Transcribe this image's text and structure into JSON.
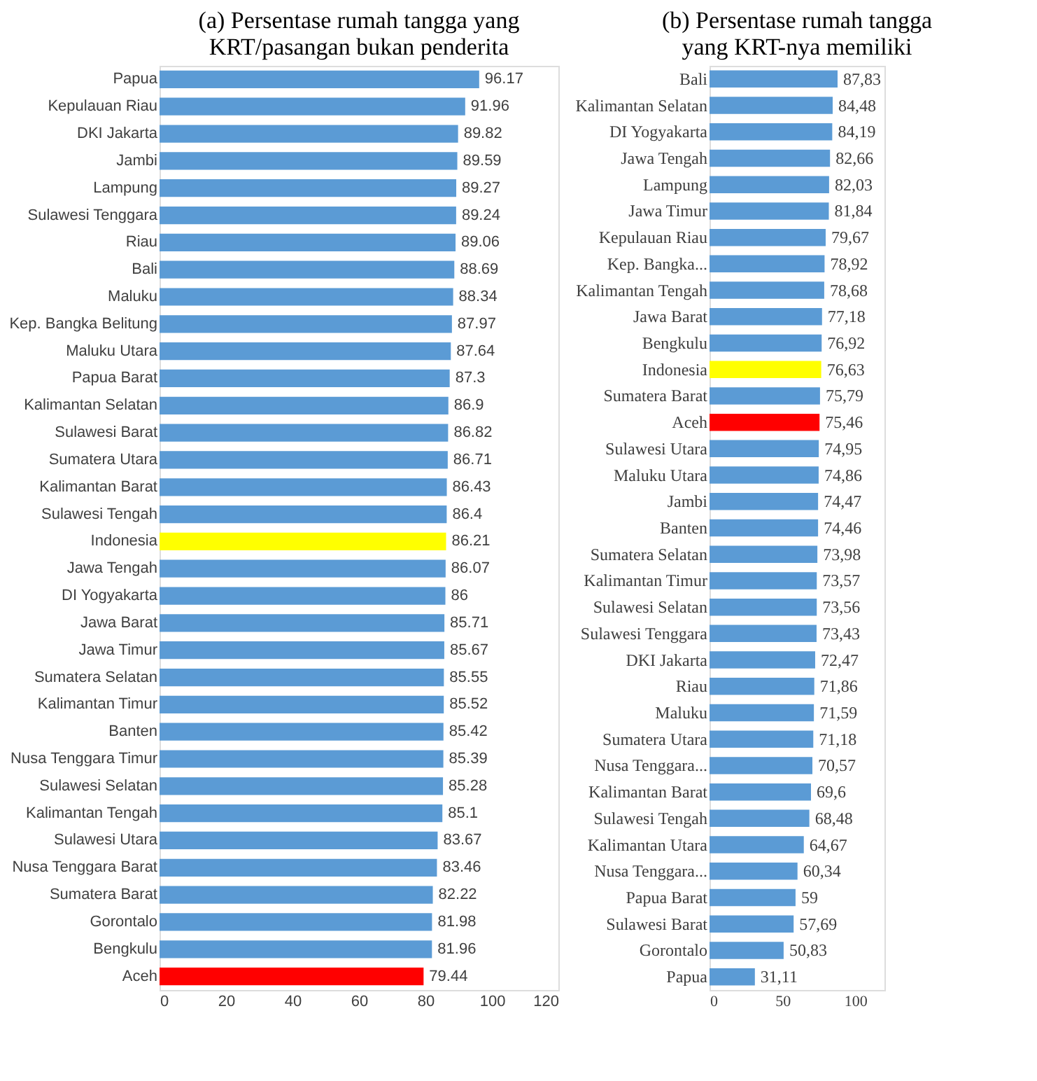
{
  "chart_data": [
    {
      "type": "bar",
      "orientation": "horizontal",
      "title": "(a) Persentase rumah tangga yang\nKRT/pasangan bukan penderita",
      "categories": [
        "Papua",
        "Kepulauan Riau",
        "DKI Jakarta",
        "Jambi",
        "Lampung",
        "Sulawesi Tenggara",
        "Riau",
        "Bali",
        "Maluku",
        "Kep. Bangka Belitung",
        "Maluku Utara",
        "Papua Barat",
        "Kalimantan Selatan",
        "Sulawesi Barat",
        "Sumatera Utara",
        "Kalimantan Barat",
        "Sulawesi Tengah",
        "Indonesia",
        "Jawa Tengah",
        "DI Yogyakarta",
        "Jawa Barat",
        "Jawa Timur",
        "Sumatera Selatan",
        "Kalimantan Timur",
        "Banten",
        "Nusa Tenggara Timur",
        "Sulawesi Selatan",
        "Kalimantan Tengah",
        "Sulawesi Utara",
        "Nusa Tenggara Barat",
        "Sumatera Barat",
        "Gorontalo",
        "Bengkulu",
        "Aceh"
      ],
      "values": [
        96.17,
        91.96,
        89.82,
        89.59,
        89.27,
        89.24,
        89.06,
        88.69,
        88.34,
        87.97,
        87.64,
        87.3,
        86.9,
        86.82,
        86.71,
        86.43,
        86.4,
        86.21,
        86.07,
        86,
        85.71,
        85.67,
        85.55,
        85.52,
        85.42,
        85.39,
        85.28,
        85.1,
        83.67,
        83.46,
        82.22,
        81.98,
        81.96,
        79.44
      ],
      "colors": [
        "#5b9bd5",
        "#5b9bd5",
        "#5b9bd5",
        "#5b9bd5",
        "#5b9bd5",
        "#5b9bd5",
        "#5b9bd5",
        "#5b9bd5",
        "#5b9bd5",
        "#5b9bd5",
        "#5b9bd5",
        "#5b9bd5",
        "#5b9bd5",
        "#5b9bd5",
        "#5b9bd5",
        "#5b9bd5",
        "#5b9bd5",
        "#ffff00",
        "#5b9bd5",
        "#5b9bd5",
        "#5b9bd5",
        "#5b9bd5",
        "#5b9bd5",
        "#5b9bd5",
        "#5b9bd5",
        "#5b9bd5",
        "#5b9bd5",
        "#5b9bd5",
        "#5b9bd5",
        "#5b9bd5",
        "#5b9bd5",
        "#5b9bd5",
        "#5b9bd5",
        "#ff0000"
      ],
      "data_labels": true,
      "xlim": [
        0,
        120
      ],
      "xticks": [
        0,
        20,
        40,
        60,
        80,
        100,
        120
      ],
      "grid": false
    },
    {
      "type": "bar",
      "orientation": "horizontal",
      "title": "(b) Persentase rumah tangga\nyang KRT-nya memiliki",
      "categories": [
        "Bali",
        "Kalimantan Selatan",
        "DI Yogyakarta",
        "Jawa Tengah",
        "Lampung",
        "Jawa Timur",
        "Kepulauan Riau",
        "Kep. Bangka...",
        "Kalimantan Tengah",
        "Jawa Barat",
        "Bengkulu",
        "Indonesia",
        "Sumatera Barat",
        "Aceh",
        "Sulawesi Utara",
        "Maluku Utara",
        "Jambi",
        "Banten",
        "Sumatera Selatan",
        "Kalimantan Timur",
        "Sulawesi Selatan",
        "Sulawesi Tenggara",
        "DKI Jakarta",
        "Riau",
        "Maluku",
        "Sumatera Utara",
        "Nusa Tenggara...",
        "Kalimantan Barat",
        "Sulawesi Tengah",
        "Kalimantan Utara",
        "Nusa Tenggara...",
        "Papua Barat",
        "Sulawesi Barat",
        "Gorontalo",
        "Papua"
      ],
      "values": [
        87.83,
        84.48,
        84.19,
        82.66,
        82.03,
        81.84,
        79.67,
        78.92,
        78.68,
        77.18,
        76.92,
        76.63,
        75.79,
        75.46,
        74.95,
        74.86,
        74.47,
        74.46,
        73.98,
        73.57,
        73.56,
        73.43,
        72.47,
        71.86,
        71.59,
        71.18,
        70.57,
        69.6,
        68.48,
        64.67,
        60.34,
        59,
        57.69,
        50.83,
        31.11
      ],
      "value_labels": [
        "87,83",
        "84,48",
        "84,19",
        "82,66",
        "82,03",
        "81,84",
        "79,67",
        "78,92",
        "78,68",
        "77,18",
        "76,92",
        "76,63",
        "75,79",
        "75,46",
        "74,95",
        "74,86",
        "74,47",
        "74,46",
        "73,98",
        "73,57",
        "73,56",
        "73,43",
        "72,47",
        "71,86",
        "71,59",
        "71,18",
        "70,57",
        "69,6",
        "68,48",
        "64,67",
        "60,34",
        "59",
        "57,69",
        "50,83",
        "31,11"
      ],
      "colors": [
        "#5b9bd5",
        "#5b9bd5",
        "#5b9bd5",
        "#5b9bd5",
        "#5b9bd5",
        "#5b9bd5",
        "#5b9bd5",
        "#5b9bd5",
        "#5b9bd5",
        "#5b9bd5",
        "#5b9bd5",
        "#ffff00",
        "#5b9bd5",
        "#ff0000",
        "#5b9bd5",
        "#5b9bd5",
        "#5b9bd5",
        "#5b9bd5",
        "#5b9bd5",
        "#5b9bd5",
        "#5b9bd5",
        "#5b9bd5",
        "#5b9bd5",
        "#5b9bd5",
        "#5b9bd5",
        "#5b9bd5",
        "#5b9bd5",
        "#5b9bd5",
        "#5b9bd5",
        "#5b9bd5",
        "#5b9bd5",
        "#5b9bd5",
        "#5b9bd5",
        "#5b9bd5",
        "#5b9bd5"
      ],
      "xlim": [
        0,
        120
      ],
      "xticks": [
        0,
        50,
        100
      ],
      "grid": false
    }
  ]
}
